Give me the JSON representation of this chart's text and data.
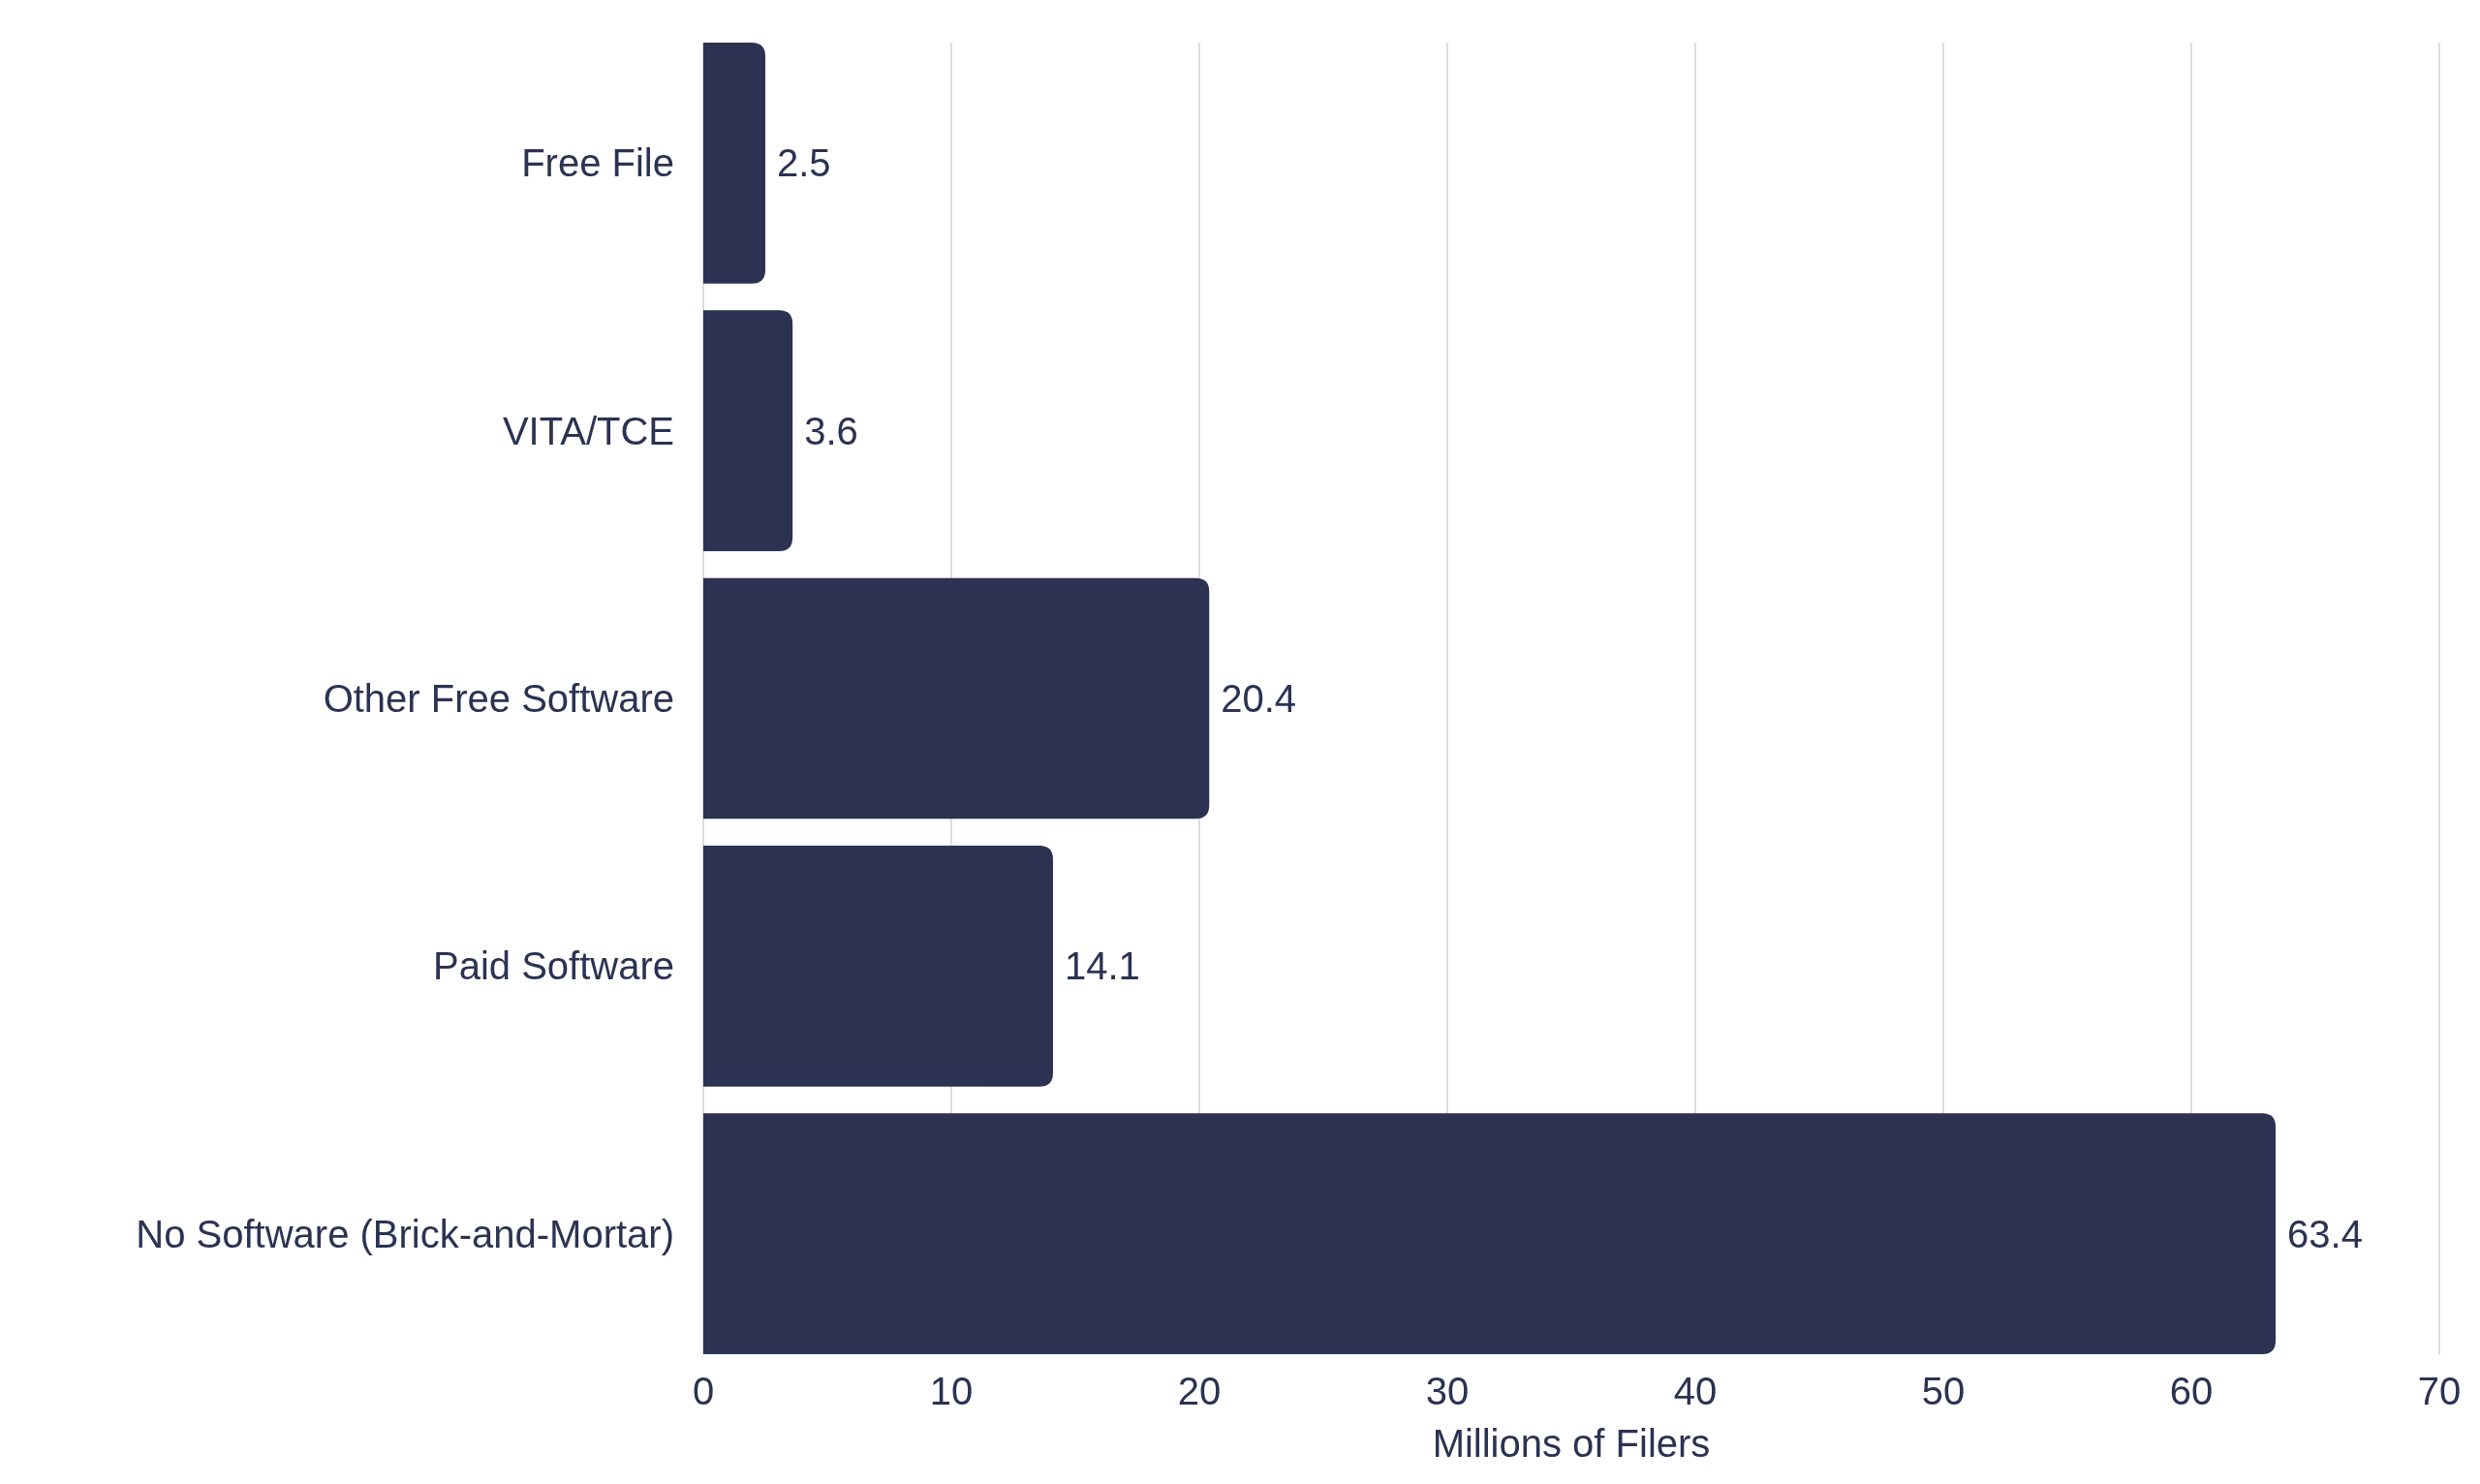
{
  "chart_data": {
    "type": "bar",
    "orientation": "horizontal",
    "categories": [
      "Free File",
      "VITA/TCE",
      "Other Free Software",
      "Paid Software",
      "No Software (Brick-and-Mortar)"
    ],
    "values": [
      2.5,
      3.6,
      20.4,
      14.1,
      63.4
    ],
    "color": "#2c3252",
    "xlabel": "Millions of Filers",
    "xlim": [
      0,
      70
    ],
    "xticks": [
      0,
      10,
      20,
      30,
      40,
      50,
      60,
      70
    ],
    "grid": "x",
    "data_labels": true
  }
}
